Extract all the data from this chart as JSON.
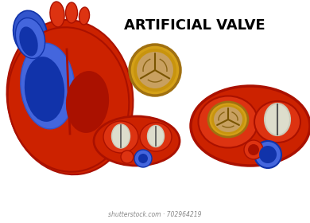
{
  "title": "ARTIFICIAL VALVE",
  "title_fontsize": 13,
  "title_fontweight": "bold",
  "background_color": "#ffffff",
  "watermark": "shutterstock.com · 702964219",
  "colors": {
    "heart_red": "#cc2200",
    "heart_red2": "#dd3311",
    "heart_dark_red": "#aa1100",
    "heart_blue": "#3355cc",
    "heart_blue2": "#4466dd",
    "heart_dark_blue": "#1133aa",
    "valve_gold": "#d4a017",
    "valve_gold2": "#c8940e",
    "valve_gold_dark": "#a07010",
    "valve_leaflet": "#c8a060",
    "cross_line": "#7a5500",
    "white_valve": "#ddddcc",
    "white_valve2": "#ccccbb",
    "slit": "#555555"
  }
}
